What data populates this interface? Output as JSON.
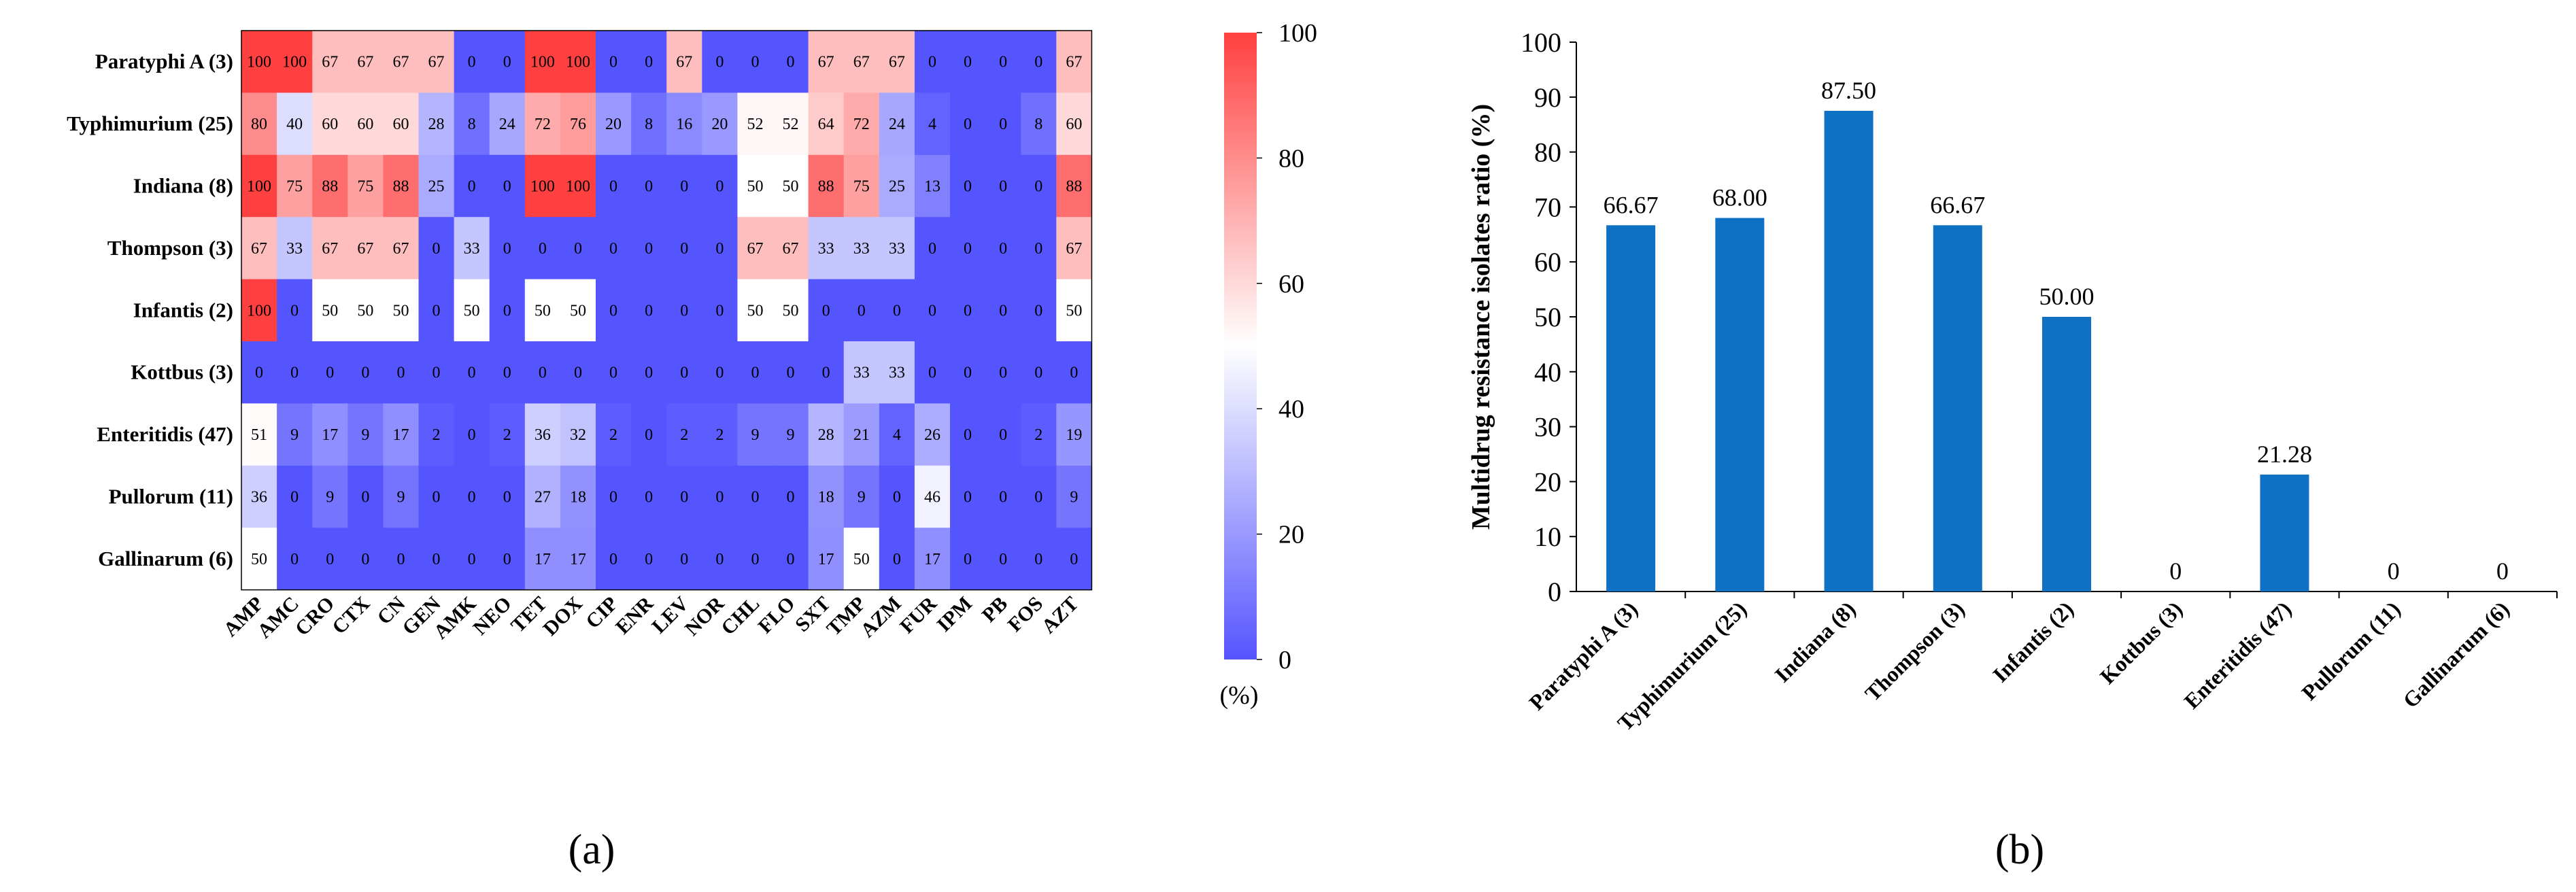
{
  "chart_data": [
    {
      "type": "heatmap",
      "panel_label": "(a)",
      "rows": [
        "Paratyphi A (3)",
        "Typhimurium (25)",
        "Indiana (8)",
        "Thompson (3)",
        "Infantis (2)",
        "Kottbus (3)",
        "Enteritidis (47)",
        "Pullorum (11)",
        "Gallinarum (6)"
      ],
      "columns": [
        "AMP",
        "AMC",
        "CRO",
        "CTX",
        "CN",
        "GEN",
        "AMK",
        "NEO",
        "TET",
        "DOX",
        "CIP",
        "ENR",
        "LEV",
        "NOR",
        "CHL",
        "FLO",
        "SXT",
        "TMP",
        "AZM",
        "FUR",
        "IPM",
        "PB",
        "FOS",
        "AZT"
      ],
      "values": [
        [
          100,
          100,
          67,
          67,
          67,
          67,
          0,
          0,
          100,
          100,
          0,
          0,
          67,
          0,
          0,
          0,
          67,
          67,
          67,
          0,
          0,
          0,
          0,
          67
        ],
        [
          80,
          40,
          60,
          60,
          60,
          28,
          8,
          24,
          72,
          76,
          20,
          8,
          16,
          20,
          52,
          52,
          64,
          72,
          24,
          4,
          0,
          0,
          8,
          60
        ],
        [
          100,
          75,
          88,
          75,
          88,
          25,
          0,
          0,
          100,
          100,
          0,
          0,
          0,
          0,
          50,
          50,
          88,
          75,
          25,
          13,
          0,
          0,
          0,
          88
        ],
        [
          67,
          33,
          67,
          67,
          67,
          0,
          33,
          0,
          0,
          0,
          0,
          0,
          0,
          0,
          67,
          67,
          33,
          33,
          33,
          0,
          0,
          0,
          0,
          67
        ],
        [
          100,
          0,
          50,
          50,
          50,
          0,
          50,
          0,
          50,
          50,
          0,
          0,
          0,
          0,
          50,
          50,
          0,
          0,
          0,
          0,
          0,
          0,
          0,
          50
        ],
        [
          0,
          0,
          0,
          0,
          0,
          0,
          0,
          0,
          0,
          0,
          0,
          0,
          0,
          0,
          0,
          0,
          0,
          33,
          33,
          0,
          0,
          0,
          0,
          0
        ],
        [
          51,
          9,
          17,
          9,
          17,
          2,
          0,
          2,
          36,
          32,
          2,
          0,
          2,
          2,
          9,
          9,
          28,
          21,
          4,
          26,
          0,
          0,
          2,
          19
        ],
        [
          36,
          0,
          9,
          0,
          9,
          0,
          0,
          0,
          27,
          18,
          0,
          0,
          0,
          0,
          0,
          0,
          18,
          9,
          0,
          46,
          0,
          0,
          0,
          9
        ],
        [
          50,
          0,
          0,
          0,
          0,
          0,
          0,
          0,
          17,
          17,
          0,
          0,
          0,
          0,
          0,
          0,
          17,
          50,
          0,
          17,
          0,
          0,
          0,
          0
        ]
      ],
      "colorbar": {
        "ticks": [
          "100",
          "80",
          "60",
          "40",
          "20",
          "0"
        ],
        "unit_label": "(%)",
        "low_color": "#5555ff",
        "mid_color": "#ffffff",
        "high_color": "#ff4040"
      }
    },
    {
      "type": "bar",
      "panel_label": "(b)",
      "categories": [
        "Paratyphi A (3)",
        "Typhimurium (25)",
        "Indiana (8)",
        "Thompson (3)",
        "Infantis (2)",
        "Kottbus (3)",
        "Enteritidis (47)",
        "Pullorum (11)",
        "Gallinarum (6)"
      ],
      "values": [
        66.67,
        68.0,
        87.5,
        66.67,
        50.0,
        0,
        21.28,
        0,
        0
      ],
      "value_labels": [
        "66.67",
        "68.00",
        "87.50",
        "66.67",
        "50.00",
        "0",
        "21.28",
        "0",
        "0"
      ],
      "ylabel": "Multidrug resistance isolates ratio (%)",
      "ylim": [
        0,
        100
      ],
      "yticks": [
        "0",
        "10",
        "20",
        "30",
        "40",
        "50",
        "60",
        "70",
        "80",
        "90",
        "100"
      ],
      "bar_color": "#0e71c4"
    }
  ]
}
